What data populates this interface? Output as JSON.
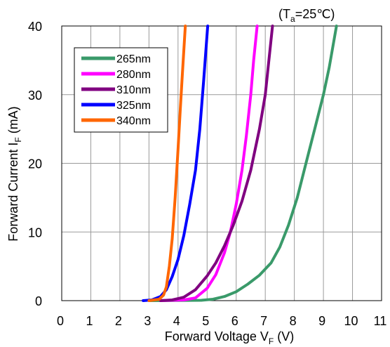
{
  "chart_data": {
    "type": "line",
    "condition": {
      "prefix": "(T",
      "sub": "a",
      "suffix": "=25℃)"
    },
    "xlabel": {
      "main": "Forward Voltage V",
      "sub": "F",
      "unit": " (V)"
    },
    "ylabel": {
      "main": "Forward Current I",
      "sub": "F",
      "unit": " (mA)"
    },
    "xlim": [
      0,
      11
    ],
    "ylim": [
      0,
      40
    ],
    "xticks": [
      0,
      1,
      2,
      3,
      4,
      5,
      6,
      7,
      8,
      9,
      10,
      11
    ],
    "yticks": [
      0,
      10,
      20,
      30,
      40
    ],
    "grid": true,
    "legend_position": "top-left",
    "series": [
      {
        "name": "265nm",
        "color": "#3a9a6a",
        "points": [
          [
            3.0,
            0
          ],
          [
            4.8,
            0.05
          ],
          [
            5.2,
            0.2
          ],
          [
            5.6,
            0.6
          ],
          [
            6.0,
            1.3
          ],
          [
            6.4,
            2.4
          ],
          [
            6.8,
            3.7
          ],
          [
            7.2,
            5.5
          ],
          [
            7.5,
            7.8
          ],
          [
            7.8,
            11
          ],
          [
            8.1,
            15
          ],
          [
            8.4,
            20
          ],
          [
            8.7,
            25
          ],
          [
            9.0,
            30
          ],
          [
            9.2,
            34
          ],
          [
            9.45,
            40
          ]
        ]
      },
      {
        "name": "280nm",
        "color": "#ff00ff",
        "points": [
          [
            3.4,
            0
          ],
          [
            4.2,
            0.1
          ],
          [
            4.6,
            0.4
          ],
          [
            5.0,
            1.8
          ],
          [
            5.3,
            3.8
          ],
          [
            5.6,
            7
          ],
          [
            5.8,
            10
          ],
          [
            6.0,
            14
          ],
          [
            6.2,
            19
          ],
          [
            6.35,
            24
          ],
          [
            6.5,
            30
          ],
          [
            6.6,
            35
          ],
          [
            6.72,
            40
          ]
        ]
      },
      {
        "name": "310nm",
        "color": "#800080",
        "points": [
          [
            3.4,
            0
          ],
          [
            3.8,
            0.1
          ],
          [
            4.2,
            0.5
          ],
          [
            4.6,
            1.6
          ],
          [
            5.0,
            3.6
          ],
          [
            5.3,
            5.5
          ],
          [
            5.6,
            8
          ],
          [
            5.9,
            11
          ],
          [
            6.2,
            14.5
          ],
          [
            6.5,
            19
          ],
          [
            6.8,
            25
          ],
          [
            7.0,
            30
          ],
          [
            7.1,
            34
          ],
          [
            7.25,
            40
          ]
        ]
      },
      {
        "name": "325nm",
        "color": "#0000ff",
        "points": [
          [
            2.8,
            0
          ],
          [
            3.1,
            0.1
          ],
          [
            3.4,
            0.6
          ],
          [
            3.6,
            1.6
          ],
          [
            3.8,
            3.5
          ],
          [
            4.0,
            6
          ],
          [
            4.2,
            9.5
          ],
          [
            4.4,
            14
          ],
          [
            4.6,
            19
          ],
          [
            4.75,
            25
          ],
          [
            4.88,
            32
          ],
          [
            5.02,
            40
          ]
        ]
      },
      {
        "name": "340nm",
        "color": "#ff6600",
        "points": [
          [
            3.0,
            0
          ],
          [
            3.35,
            0.2
          ],
          [
            3.5,
            0.8
          ],
          [
            3.6,
            2
          ],
          [
            3.7,
            5
          ],
          [
            3.8,
            9
          ],
          [
            3.9,
            15
          ],
          [
            4.0,
            22
          ],
          [
            4.08,
            28
          ],
          [
            4.15,
            33
          ],
          [
            4.25,
            40
          ]
        ]
      }
    ]
  }
}
